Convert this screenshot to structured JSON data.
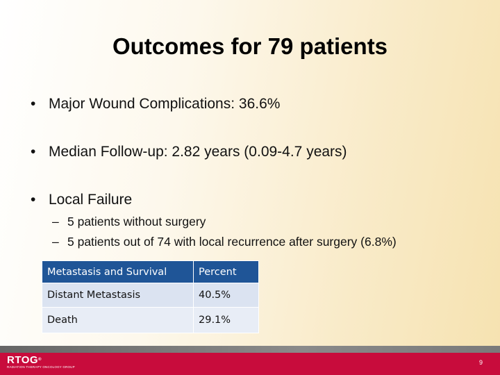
{
  "slide": {
    "title": "Outcomes for 79 patients",
    "bullets": [
      "Major Wound Complications: 36.6%",
      "Median Follow-up: 2.82 years (0.09-4.7 years)",
      "Local Failure"
    ],
    "bullet_symbol": "•",
    "sub_symbol": "–",
    "sub_bullets": [
      "5 patients without surgery",
      "5 patients out of 74 with local recurrence after surgery (6.8%)"
    ]
  },
  "table": {
    "headers": [
      "Metastasis and Survival",
      "Percent"
    ],
    "rows": [
      [
        "Distant Metastasis",
        "40.5%"
      ],
      [
        "Death",
        "29.1%"
      ]
    ]
  },
  "footer": {
    "logo_text": "RTOG",
    "logo_mark": "®",
    "logo_subtitle": "RADIATION THERAPY ONCOLOGY GROUP",
    "page_number": "9"
  },
  "colors": {
    "header_blue": "#1f5597",
    "row_light": "#dbe3f1",
    "footer_red": "#c80c3c"
  }
}
